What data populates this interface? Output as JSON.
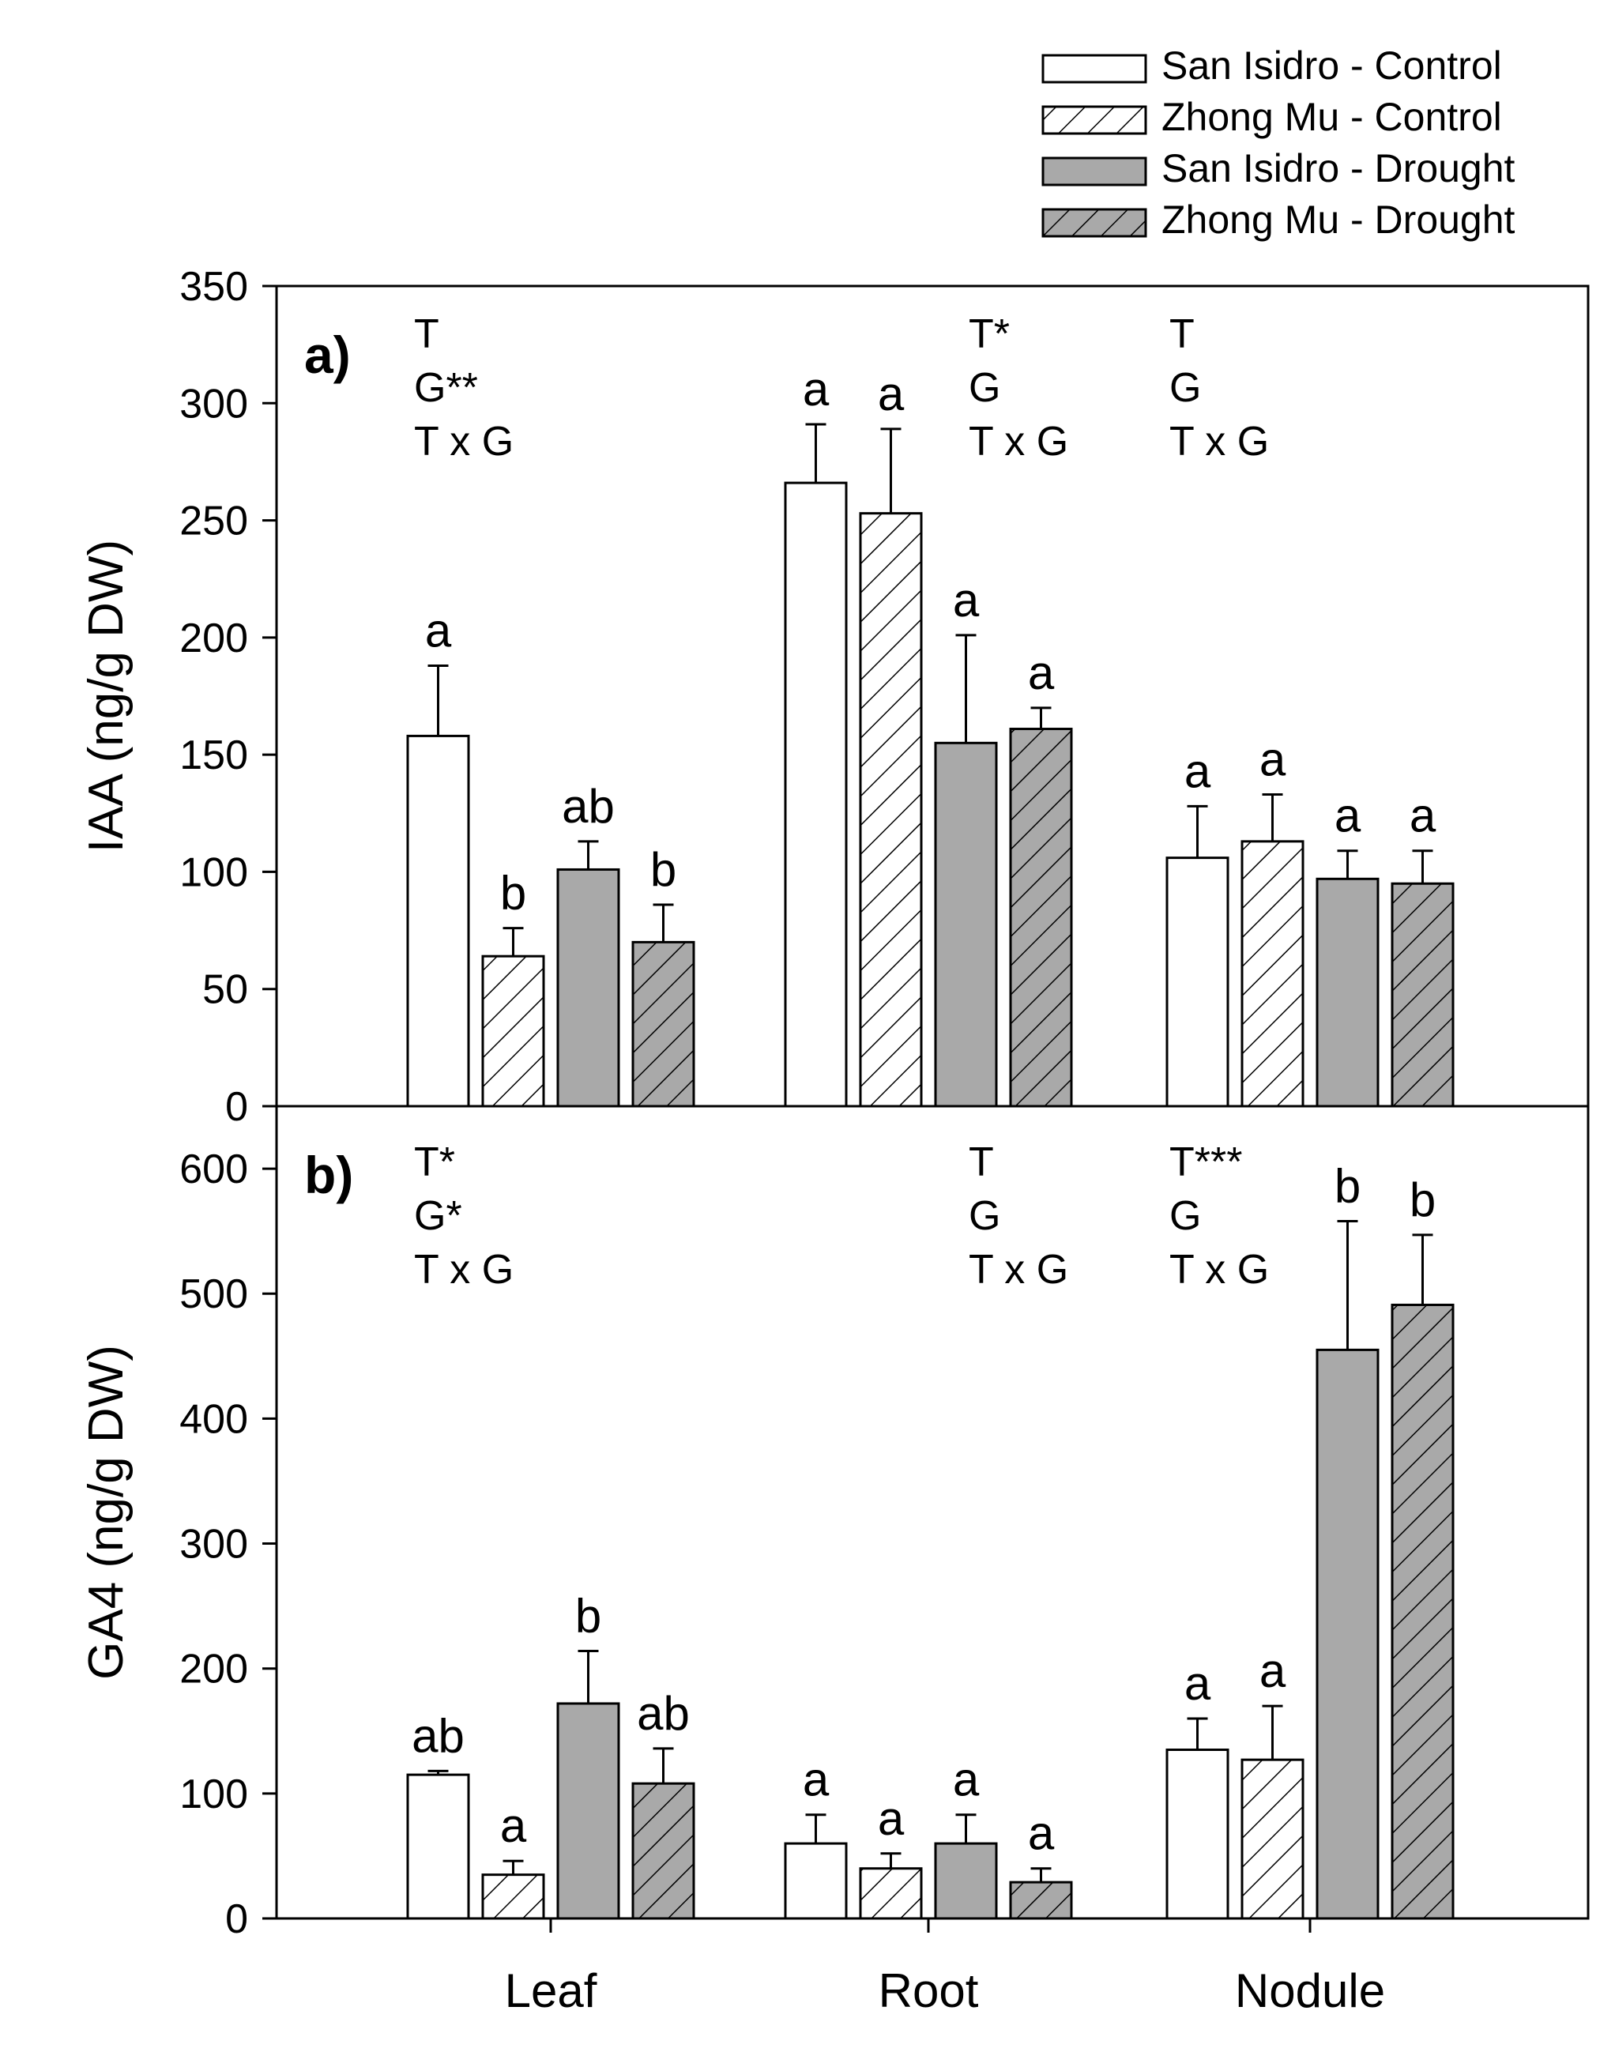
{
  "chart_data": [
    {
      "type": "bar",
      "panel_label": "a)",
      "ylabel": "IAA (ng/g DW)",
      "ylim": [
        0,
        350
      ],
      "yticks": [
        0,
        50,
        100,
        150,
        200,
        250,
        300,
        350
      ],
      "categories": [
        "Leaf",
        "Root",
        "Nodule"
      ],
      "series": [
        {
          "name": "San Isidro - Control",
          "values": [
            158,
            266,
            106
          ],
          "errors": [
            30,
            25,
            22
          ],
          "letters": [
            "a",
            "a",
            "a"
          ]
        },
        {
          "name": "Zhong Mu - Control",
          "values": [
            64,
            253,
            113
          ],
          "errors": [
            12,
            36,
            20
          ],
          "letters": [
            "b",
            "a",
            "a"
          ]
        },
        {
          "name": "San Isidro - Drought",
          "values": [
            101,
            155,
            97
          ],
          "errors": [
            12,
            46,
            12
          ],
          "letters": [
            "ab",
            "a",
            "a"
          ]
        },
        {
          "name": "Zhong Mu - Drought",
          "values": [
            70,
            161,
            95
          ],
          "errors": [
            16,
            9,
            14
          ],
          "letters": [
            "b",
            "a",
            "a"
          ]
        }
      ],
      "stats": [
        [
          "T",
          "G**",
          "T x G"
        ],
        [
          "T*",
          "G",
          "T x G"
        ],
        [
          "T",
          "G",
          "T x G"
        ]
      ]
    },
    {
      "type": "bar",
      "panel_label": "b)",
      "ylabel": "GA4 (ng/g DW)",
      "ylim": [
        0,
        650
      ],
      "yticks": [
        0,
        100,
        200,
        300,
        400,
        500,
        600
      ],
      "xlabel_ticks": [
        "Leaf",
        "Root",
        "Nodule"
      ],
      "categories": [
        "Leaf",
        "Root",
        "Nodule"
      ],
      "series": [
        {
          "name": "San Isidro - Control",
          "values": [
            115,
            60,
            135
          ],
          "errors": [
            3,
            23,
            25
          ],
          "letters": [
            "ab",
            "a",
            "a"
          ]
        },
        {
          "name": "Zhong Mu - Control",
          "values": [
            35,
            40,
            127
          ],
          "errors": [
            11,
            12,
            43
          ],
          "letters": [
            "a",
            "a",
            "a"
          ]
        },
        {
          "name": "San Isidro - Drought",
          "values": [
            172,
            60,
            455
          ],
          "errors": [
            42,
            23,
            103
          ],
          "letters": [
            "b",
            "a",
            "b"
          ]
        },
        {
          "name": "Zhong Mu - Drought",
          "values": [
            108,
            29,
            491
          ],
          "errors": [
            28,
            11,
            56
          ],
          "letters": [
            "ab",
            "a",
            "b"
          ]
        }
      ],
      "stats": [
        [
          "T*",
          "G*",
          "T x G"
        ],
        [
          "T",
          "G",
          "T x G"
        ],
        [
          "T***",
          "G",
          "T x G"
        ]
      ]
    }
  ],
  "legend": [
    {
      "name": "San Isidro - Control",
      "fill": "white",
      "hatch": false
    },
    {
      "name": "Zhong Mu - Control",
      "fill": "white",
      "hatch": true
    },
    {
      "name": "San Isidro - Drought",
      "fill": "gray",
      "hatch": false
    },
    {
      "name": "Zhong Mu - Drought",
      "fill": "gray",
      "hatch": true
    }
  ],
  "colors": {
    "white_fill": "#ffffff",
    "gray_fill": "#a9a9a9",
    "stroke": "#000000"
  }
}
